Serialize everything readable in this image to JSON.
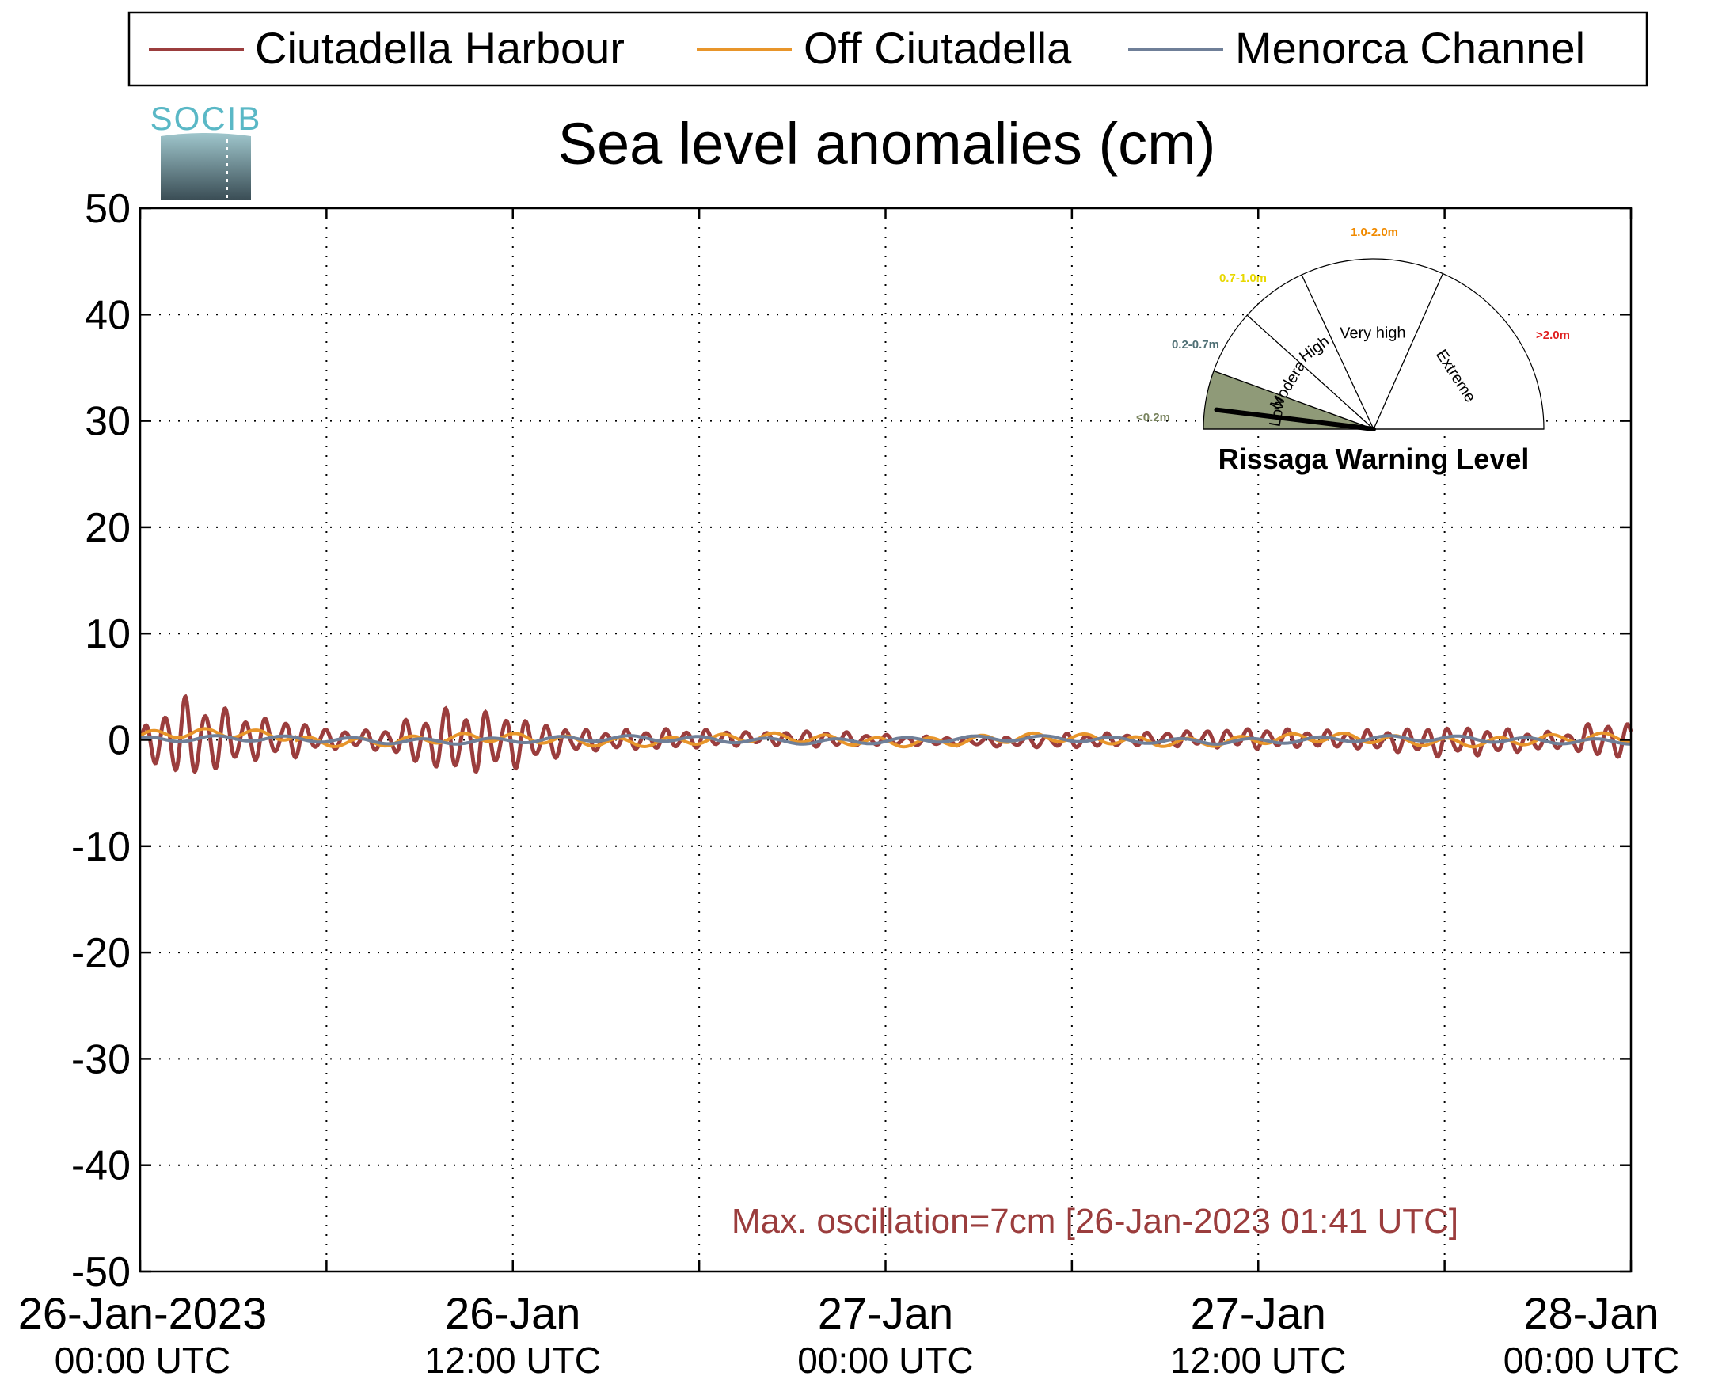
{
  "chart_data": {
    "type": "line",
    "title": "Sea level anomalies (cm)",
    "logo_text": "SOCIB",
    "xlabel": "",
    "ylabel": "",
    "ylim": [
      -50,
      50
    ],
    "yticks": [
      50,
      40,
      30,
      20,
      10,
      0,
      -10,
      -20,
      -30,
      -40,
      -50
    ],
    "xlim_hours": [
      0,
      48
    ],
    "xticks": [
      {
        "date": "26-Jan-2023",
        "time": "00:00 UTC"
      },
      {
        "date": "26-Jan",
        "time": "12:00 UTC"
      },
      {
        "date": "27-Jan",
        "time": "00:00 UTC"
      },
      {
        "date": "27-Jan",
        "time": "12:00 UTC"
      },
      {
        "date": "28-Jan",
        "time": "00:00 UTC"
      }
    ],
    "grid": true,
    "legend": {
      "placement": "top"
    },
    "series": [
      {
        "name": "Ciutadella Harbour",
        "color": "#9b3d3d",
        "amplitude_envelope_cm": {
          "hours": [
            0,
            0.5,
            1,
            1.5,
            2,
            2.5,
            3,
            4,
            5,
            6,
            7,
            8,
            9,
            10,
            11,
            12,
            13,
            14,
            15,
            16,
            18,
            20,
            22,
            24,
            26,
            28,
            30,
            32,
            34,
            36,
            37,
            38,
            40,
            42,
            44,
            45,
            46,
            47,
            48
          ],
          "values": [
            0.8,
            2.5,
            3.8,
            4.0,
            3.6,
            3.2,
            2.5,
            2.0,
            1.8,
            1.0,
            0.8,
            1.2,
            2.5,
            3.2,
            3.0,
            2.6,
            1.8,
            1.2,
            0.9,
            1.0,
            0.9,
            0.6,
            0.8,
            0.5,
            0.4,
            0.5,
            0.7,
            0.6,
            0.8,
            1.0,
            0.9,
            0.8,
            1.0,
            1.5,
            1.2,
            0.9,
            0.8,
            2.0,
            1.5
          ]
        }
      },
      {
        "name": "Off Ciutadella",
        "color": "#e8952a",
        "amplitude_cm": 0.8
      },
      {
        "name": "Menorca Channel",
        "color": "#6f7f98",
        "amplitude_cm": 0.5
      }
    ],
    "annotation": "Max. oscillation=7cm [26-Jan-2023 01:41 UTC]",
    "annotation_color": "#9b3d3d"
  },
  "gauge": {
    "title": "Rissaga Warning Level",
    "sectors": [
      {
        "label": "Low",
        "range": "<0.2m",
        "range_color": "#7a8560",
        "fill": "#8f9a78",
        "active": true
      },
      {
        "label": "Moderate",
        "range": "0.2-0.7m",
        "range_color": "#4e6f74",
        "fill": "#ffffff",
        "active": false
      },
      {
        "label": "High",
        "range": "0.7-1.0m",
        "range_color": "#e8d800",
        "fill": "#ffffff",
        "active": false
      },
      {
        "label": "Very high",
        "range": "1.0-2.0m",
        "range_color": "#f08a00",
        "fill": "#ffffff",
        "active": false
      },
      {
        "label": "Extreme",
        "range": ">2.0m",
        "range_color": "#e02020",
        "fill": "#ffffff",
        "active": false
      }
    ],
    "needle_value_m": 0.07
  }
}
